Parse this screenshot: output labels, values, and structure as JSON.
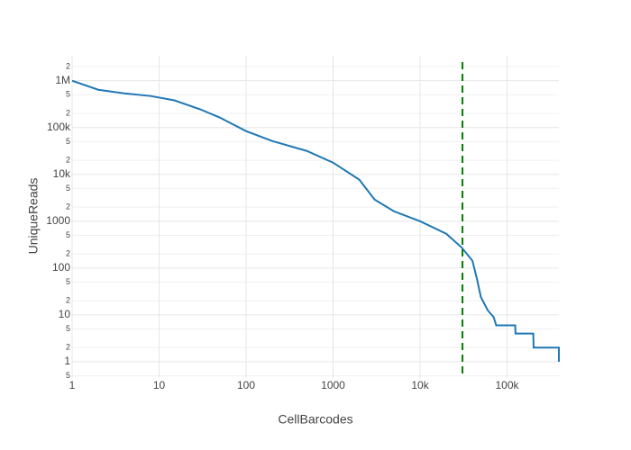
{
  "chart_data": {
    "type": "line",
    "xlabel": "CellBarcodes",
    "ylabel": "UniqueReads",
    "xscale": "log",
    "yscale": "log",
    "grid": true,
    "xlim": [
      1,
      394000
    ],
    "ylim": [
      0.45,
      3400000
    ],
    "xticks": [
      1,
      10,
      100,
      1000,
      {
        "value": 10000,
        "label": "10k"
      },
      {
        "value": 100000,
        "label": "100k"
      }
    ],
    "yticks": [
      {
        "value": 0.5,
        "label": "5"
      },
      1,
      {
        "value": 2,
        "label": "2"
      },
      {
        "value": 5,
        "label": "5"
      },
      10,
      {
        "value": 20,
        "label": "2"
      },
      {
        "value": 50,
        "label": "5"
      },
      100,
      {
        "value": 200,
        "label": "2"
      },
      {
        "value": 500,
        "label": "5"
      },
      1000,
      {
        "value": 2000,
        "label": "2"
      },
      {
        "value": 5000,
        "label": "5"
      },
      {
        "value": 10000,
        "label": "10k"
      },
      {
        "value": 20000,
        "label": "2"
      },
      {
        "value": 50000,
        "label": "5"
      },
      {
        "value": 100000,
        "label": "100k"
      },
      {
        "value": 200000,
        "label": "2"
      },
      {
        "value": 500000,
        "label": "5"
      },
      {
        "value": 1000000,
        "label": "1M"
      },
      {
        "value": 2000000,
        "label": "2"
      }
    ],
    "x": [
      1,
      2,
      4,
      8,
      15,
      30,
      50,
      100,
      200,
      500,
      1000,
      2000,
      3000,
      5000,
      10000,
      20000,
      30000,
      40000,
      45000,
      50000,
      60000,
      70000,
      75000,
      100000,
      124000,
      125000,
      200000,
      202000,
      394000,
      394000
    ],
    "series": [
      {
        "color": "#1f77b4",
        "values": [
          1000000,
          640000,
          537000,
          471000,
          380000,
          243000,
          163000,
          84000,
          51500,
          31600,
          17800,
          7700,
          2900,
          1630,
          1000,
          540,
          276,
          143,
          59,
          24,
          12.5,
          9,
          6,
          6,
          6,
          4,
          4,
          2,
          2,
          1
        ]
      }
    ],
    "vline": {
      "x": 30700,
      "color": "#008000"
    }
  }
}
